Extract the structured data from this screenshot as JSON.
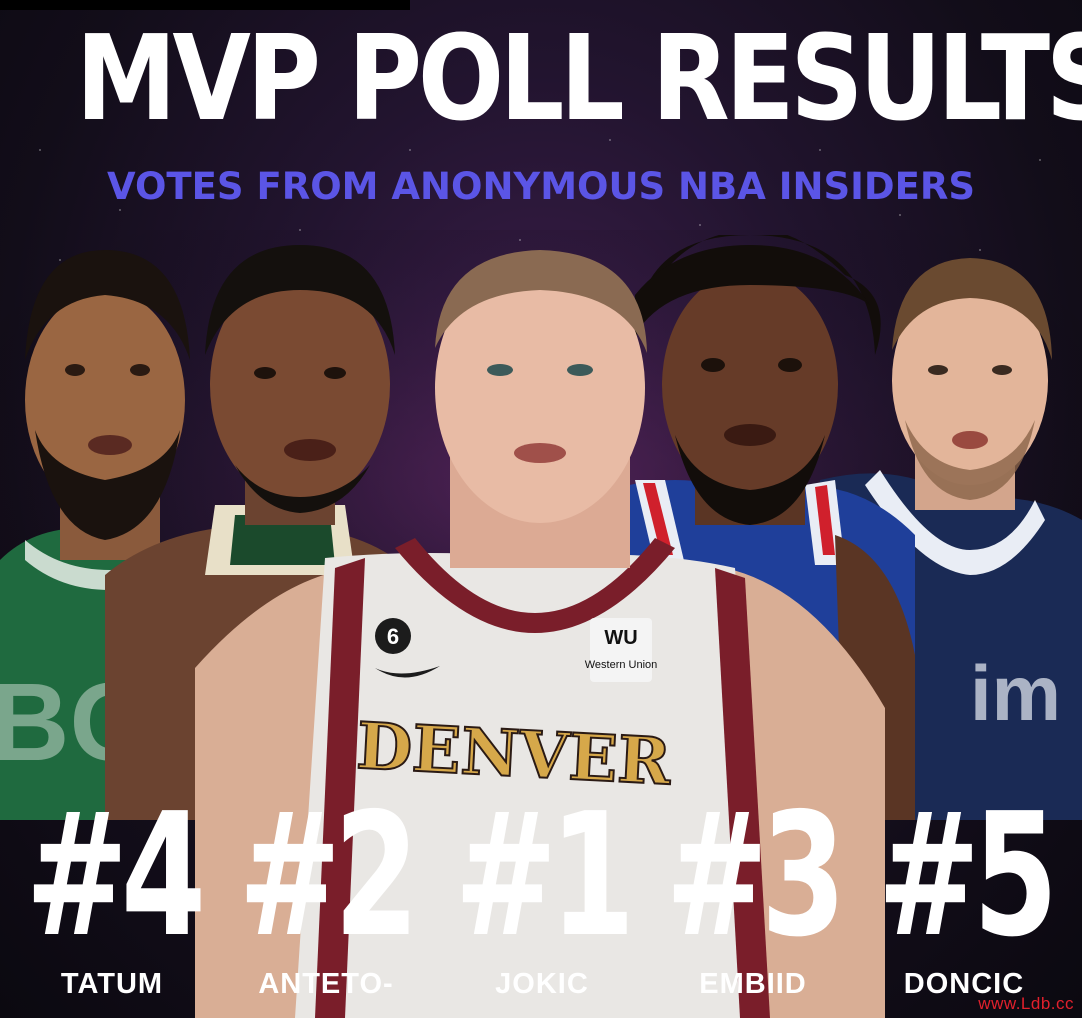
{
  "poster": {
    "title": "MVP POLL RESULTS",
    "subtitle": "VOTES FROM ANONYMOUS NBA INSIDERS",
    "watermark": "www.Ldb.cc"
  },
  "players": [
    {
      "rank": "#4",
      "name": "TATUM"
    },
    {
      "rank": "#2",
      "name": "ANTETO-"
    },
    {
      "rank": "#1",
      "name": "JOKIC",
      "jersey_number": "6",
      "jersey_text": "DENVER",
      "sponsor_top": "WU",
      "sponsor_name": "Western Union"
    },
    {
      "rank": "#3",
      "name": "EMBIID"
    },
    {
      "rank": "#5",
      "name": "DONCIC"
    }
  ],
  "colors": {
    "title": "#ffffff",
    "subtitle": "#5b55e6",
    "background": "#120d19",
    "watermark": "#e0202c",
    "celtics_green": "#1f6a3f",
    "bucks_cream": "#e8e0c8",
    "nuggets_white": "#e9e7e4",
    "nuggets_trim": "#7a1e2a",
    "sixers_blue": "#1f3f9a",
    "mavs_navy": "#1a2a55"
  }
}
